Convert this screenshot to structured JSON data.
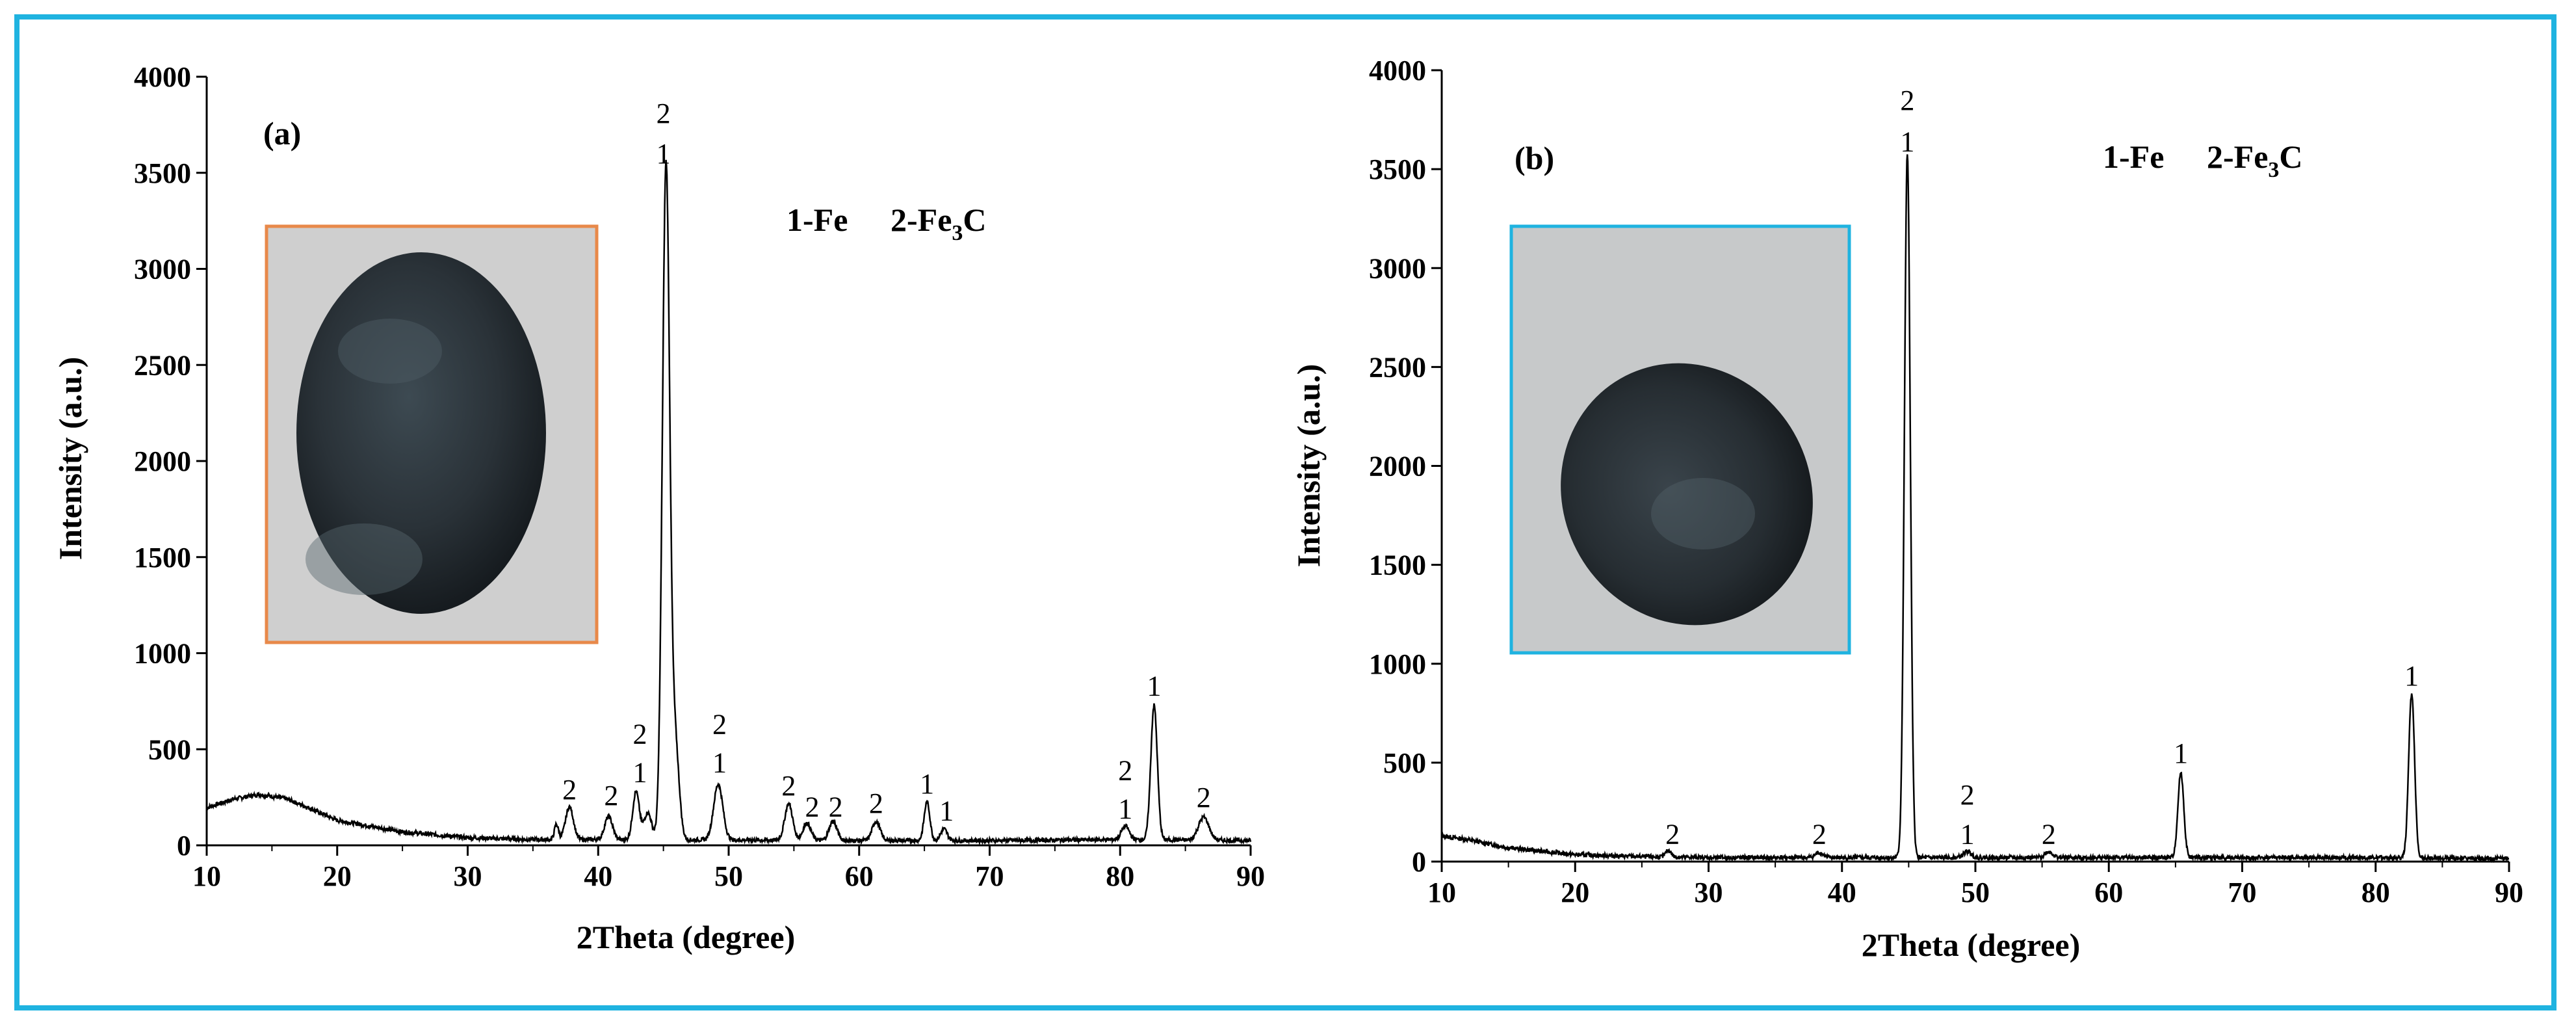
{
  "chart_data": [
    {
      "type": "line",
      "panel": "(a)",
      "xlabel": "2Theta (degree)",
      "ylabel": "Intensity (a.u.)",
      "xlim": [
        10,
        90
      ],
      "ylim": [
        0,
        4000
      ],
      "xticks": [
        10,
        20,
        30,
        40,
        50,
        60,
        70,
        80,
        90
      ],
      "yticks": [
        0,
        500,
        1000,
        1500,
        2000,
        2500,
        3000,
        3500,
        4000
      ],
      "legend": {
        "fe": "1-Fe",
        "fe3c_prefix": "2-Fe",
        "fe3c_sub": "3",
        "fe3c_suffix": "C"
      },
      "inset": {
        "description": "sample photo",
        "border_color": "#e8894a"
      },
      "background": [
        [
          10,
          195
        ],
        [
          12,
          240
        ],
        [
          14,
          265
        ],
        [
          16,
          245
        ],
        [
          18,
          190
        ],
        [
          20,
          130
        ],
        [
          25,
          70
        ],
        [
          30,
          40
        ],
        [
          35,
          30
        ],
        [
          40,
          30
        ],
        [
          50,
          28
        ],
        [
          60,
          25
        ],
        [
          70,
          25
        ],
        [
          80,
          30
        ],
        [
          90,
          25
        ]
      ],
      "peaks": [
        {
          "x": 36.8,
          "y": 80,
          "w": 0.15
        },
        {
          "x": 37.8,
          "y": 170,
          "w": 0.3
        },
        {
          "x": 40.8,
          "y": 120,
          "w": 0.3
        },
        {
          "x": 42.9,
          "y": 250,
          "w": 0.25
        },
        {
          "x": 43.8,
          "y": 140,
          "w": 0.3
        },
        {
          "x": 45.2,
          "y": 3500,
          "w": 0.28
        },
        {
          "x": 45.9,
          "y": 500,
          "w": 0.3
        },
        {
          "x": 49.2,
          "y": 290,
          "w": 0.35
        },
        {
          "x": 54.6,
          "y": 190,
          "w": 0.3
        },
        {
          "x": 56.0,
          "y": 90,
          "w": 0.3
        },
        {
          "x": 58.0,
          "y": 100,
          "w": 0.3
        },
        {
          "x": 61.3,
          "y": 100,
          "w": 0.3
        },
        {
          "x": 65.2,
          "y": 200,
          "w": 0.22
        },
        {
          "x": 66.5,
          "y": 60,
          "w": 0.25
        },
        {
          "x": 80.4,
          "y": 70,
          "w": 0.3
        },
        {
          "x": 82.6,
          "y": 700,
          "w": 0.25
        },
        {
          "x": 86.4,
          "y": 120,
          "w": 0.4
        }
      ],
      "peak_labels": [
        {
          "x": 37.8,
          "y": 240,
          "text": "2"
        },
        {
          "x": 41.0,
          "y": 210,
          "text": "2"
        },
        {
          "x": 43.2,
          "y": 330,
          "text": "1"
        },
        {
          "x": 43.2,
          "y": 530,
          "text": "2"
        },
        {
          "x": 45.0,
          "y": 3550,
          "text": "1"
        },
        {
          "x": 45.0,
          "y": 3760,
          "text": "2"
        },
        {
          "x": 49.3,
          "y": 380,
          "text": "1"
        },
        {
          "x": 49.3,
          "y": 580,
          "text": "2"
        },
        {
          "x": 54.6,
          "y": 260,
          "text": "2"
        },
        {
          "x": 56.4,
          "y": 150,
          "text": "2"
        },
        {
          "x": 58.2,
          "y": 150,
          "text": "2"
        },
        {
          "x": 61.3,
          "y": 170,
          "text": "2"
        },
        {
          "x": 65.2,
          "y": 270,
          "text": "1"
        },
        {
          "x": 66.7,
          "y": 130,
          "text": "1"
        },
        {
          "x": 80.4,
          "y": 140,
          "text": "1"
        },
        {
          "x": 80.4,
          "y": 340,
          "text": "2"
        },
        {
          "x": 82.6,
          "y": 780,
          "text": "1"
        },
        {
          "x": 86.4,
          "y": 200,
          "text": "2"
        }
      ]
    },
    {
      "type": "line",
      "panel": "(b)",
      "xlabel": "2Theta (degree)",
      "ylabel": "Intensity (a.u.)",
      "xlim": [
        10,
        90
      ],
      "ylim": [
        0,
        4000
      ],
      "xticks": [
        10,
        20,
        30,
        40,
        50,
        60,
        70,
        80,
        90
      ],
      "yticks": [
        0,
        500,
        1000,
        1500,
        2000,
        2500,
        3000,
        3500,
        4000
      ],
      "legend": {
        "fe": "1-Fe",
        "fe3c_prefix": "2-Fe",
        "fe3c_sub": "3",
        "fe3c_suffix": "C"
      },
      "inset": {
        "description": "sample photo",
        "border_color": "#1fb3e0"
      },
      "background": [
        [
          10,
          130
        ],
        [
          12,
          110
        ],
        [
          15,
          70
        ],
        [
          20,
          35
        ],
        [
          25,
          25
        ],
        [
          30,
          20
        ],
        [
          40,
          20
        ],
        [
          50,
          20
        ],
        [
          60,
          20
        ],
        [
          70,
          20
        ],
        [
          80,
          20
        ],
        [
          90,
          15
        ]
      ],
      "peaks": [
        {
          "x": 27.0,
          "y": 35,
          "w": 0.2
        },
        {
          "x": 38.3,
          "y": 25,
          "w": 0.3
        },
        {
          "x": 44.9,
          "y": 3560,
          "w": 0.22
        },
        {
          "x": 49.4,
          "y": 30,
          "w": 0.3
        },
        {
          "x": 55.5,
          "y": 30,
          "w": 0.3
        },
        {
          "x": 65.4,
          "y": 430,
          "w": 0.22
        },
        {
          "x": 82.7,
          "y": 830,
          "w": 0.22
        }
      ],
      "peak_labels": [
        {
          "x": 27.3,
          "y": 90,
          "text": "2"
        },
        {
          "x": 38.3,
          "y": 90,
          "text": "2"
        },
        {
          "x": 44.9,
          "y": 3590,
          "text": "1"
        },
        {
          "x": 44.9,
          "y": 3800,
          "text": "2"
        },
        {
          "x": 49.4,
          "y": 90,
          "text": "1"
        },
        {
          "x": 49.4,
          "y": 290,
          "text": "2"
        },
        {
          "x": 55.5,
          "y": 90,
          "text": "2"
        },
        {
          "x": 65.4,
          "y": 500,
          "text": "1"
        },
        {
          "x": 82.7,
          "y": 890,
          "text": "1"
        }
      ]
    }
  ]
}
